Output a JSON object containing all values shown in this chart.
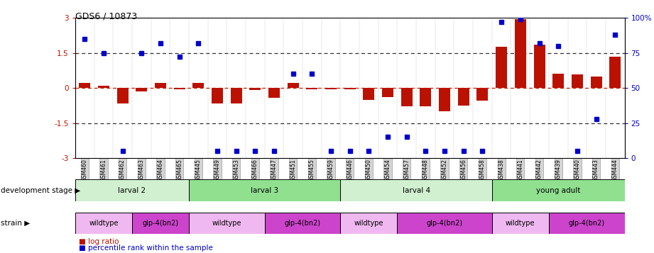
{
  "title": "GDS6 / 10873",
  "samples": [
    "GSM460",
    "GSM461",
    "GSM462",
    "GSM463",
    "GSM464",
    "GSM465",
    "GSM445",
    "GSM449",
    "GSM453",
    "GSM466",
    "GSM447",
    "GSM451",
    "GSM455",
    "GSM459",
    "GSM446",
    "GSM450",
    "GSM454",
    "GSM457",
    "GSM448",
    "GSM452",
    "GSM456",
    "GSM458",
    "GSM438",
    "GSM441",
    "GSM442",
    "GSM439",
    "GSM440",
    "GSM443",
    "GSM444"
  ],
  "log_ratio": [
    0.22,
    0.08,
    -0.65,
    -0.15,
    0.2,
    -0.05,
    0.22,
    -0.65,
    -0.65,
    -0.1,
    -0.42,
    0.2,
    -0.05,
    -0.05,
    -0.05,
    -0.5,
    -0.38,
    -0.8,
    -0.8,
    -1.0,
    -0.75,
    -0.55,
    1.75,
    2.95,
    1.85,
    0.62,
    0.58,
    0.5,
    1.32
  ],
  "percentile": [
    85,
    75,
    5,
    75,
    82,
    72,
    82,
    5,
    5,
    5,
    5,
    60,
    60,
    5,
    5,
    5,
    15,
    15,
    5,
    5,
    5,
    5,
    97,
    99,
    82,
    80,
    5,
    28,
    88
  ],
  "dev_stages": [
    {
      "label": "larval 2",
      "start": 0,
      "end": 6,
      "color": "#d0f0d0"
    },
    {
      "label": "larval 3",
      "start": 6,
      "end": 14,
      "color": "#90e090"
    },
    {
      "label": "larval 4",
      "start": 14,
      "end": 22,
      "color": "#d0f0d0"
    },
    {
      "label": "young adult",
      "start": 22,
      "end": 29,
      "color": "#90e090"
    }
  ],
  "strains": [
    {
      "label": "wildtype",
      "start": 0,
      "end": 3,
      "color": "#f0b8f0"
    },
    {
      "label": "glp-4(bn2)",
      "start": 3,
      "end": 6,
      "color": "#cc44cc"
    },
    {
      "label": "wildtype",
      "start": 6,
      "end": 10,
      "color": "#f0b8f0"
    },
    {
      "label": "glp-4(bn2)",
      "start": 10,
      "end": 14,
      "color": "#cc44cc"
    },
    {
      "label": "wildtype",
      "start": 14,
      "end": 17,
      "color": "#f0b8f0"
    },
    {
      "label": "glp-4(bn2)",
      "start": 17,
      "end": 22,
      "color": "#cc44cc"
    },
    {
      "label": "wildtype",
      "start": 22,
      "end": 25,
      "color": "#f0b8f0"
    },
    {
      "label": "glp-4(bn2)",
      "start": 25,
      "end": 29,
      "color": "#cc44cc"
    }
  ],
  "ylim": [
    -3,
    3
  ],
  "y2lim": [
    0,
    100
  ],
  "bar_color": "#bb1100",
  "dot_color": "#0000cc",
  "hline_color": "#cc2200",
  "dotline_color": "#333333",
  "bg_color": "#ffffff",
  "row_label_dev": "development stage ▶",
  "row_label_strain": "strain ▶",
  "legend_log": "■ log ratio",
  "legend_pct": "■ percentile rank within the sample"
}
